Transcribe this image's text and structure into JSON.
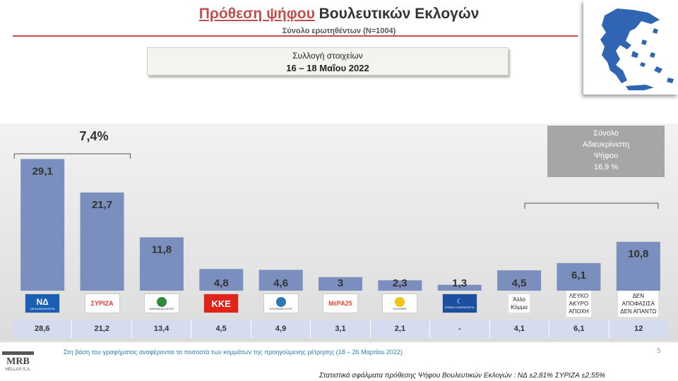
{
  "header": {
    "title_part1": "Πρόθεση ψήφου",
    "title_part2": "Βουλευτικών Εκλογών",
    "subtitle": "Σύνολο ερωτηθέντων (Ν=1004)",
    "period_label": "Συλλογή στοιχείων",
    "period_dates": "16 – 18 Μαΐου 2022"
  },
  "annotations": {
    "difference": "7,4%",
    "undecided_box": [
      "Σύνολο",
      "Αδιευκρίνιστη",
      "Ψήφου",
      "16,9 %"
    ]
  },
  "chart_data": {
    "type": "bar",
    "categories": [
      "ΝΔ",
      "ΣΥΡΙΖΑ",
      "ΚΙΝΑΛ",
      "ΚΚΕ",
      "ΕΛΛΗΝΙΚΗ ΛΥΣΗ",
      "ΜέΡΑ25",
      "ΕΛΛΗΝΕΣ",
      "ΕΘΝΙΚΗ ΔΗΜΟΚΡΑΤΙΑ",
      "Άλλο Κόμμα",
      "ΛΕΥΚΟ ΑΚΥΡΟ ΑΠΟΧΗ",
      "ΔΕΝ ΑΠΟΦΑΣΙΣΑ ΔΕΝ ΑΠΑΝΤΩ"
    ],
    "values": [
      29.1,
      21.7,
      11.8,
      4.8,
      4.6,
      3,
      2.3,
      1.3,
      4.5,
      6.1,
      10.8
    ],
    "value_labels": [
      "29,1",
      "21,7",
      "11,8",
      "4,8",
      "4,6",
      "3",
      "2,3",
      "1,3",
      "4,5",
      "6,1",
      "10,8"
    ],
    "previous_values": [
      "28,6",
      "21,2",
      "13,4",
      "4,5",
      "4,9",
      "3,1",
      "2,1",
      "-",
      "4,1",
      "6,1",
      "12"
    ],
    "bar_color": "#7b8fbe",
    "ylim": [
      0,
      32
    ]
  },
  "logos": [
    {
      "type": "nd",
      "text": "ΝΔ",
      "small": "ΝΕΑ ΔΗΜΟΚΡΑΤΙΑ",
      "color": "#1a5fb4"
    },
    {
      "type": "syriza",
      "text": "ΣΥΡΙΖΑ",
      "color": "#e3352e"
    },
    {
      "type": "kinal",
      "text": "",
      "small": "ΚΙΝΗΜΑ ΑΛΛΑΓΗΣ",
      "color": "#2e8b3a"
    },
    {
      "type": "kke",
      "text": "ΚΚΕ",
      "color": "#e2231a"
    },
    {
      "type": "elliniki",
      "text": "",
      "small": "ΕΛΛΗΝΙΚΗ ΛΥΣΗ",
      "color": "#2a78b8"
    },
    {
      "type": "mera",
      "text": "ΜέΡΑ25",
      "color": "#e4472d"
    },
    {
      "type": "ellines",
      "text": "",
      "small": "ΕΛΛΗΝΕΣ",
      "color": "#f0c419"
    },
    {
      "type": "ethniki",
      "text": "",
      "small": "ΕΘΝΙΚΗ ΔΗΜΟΚΡΑΤΙΑ",
      "color": "#1d4fa0"
    },
    {
      "type": "text",
      "lines": [
        "Άλλο",
        "Κόμμα"
      ]
    },
    {
      "type": "text",
      "lines": [
        "ΛΕΥΚΟ",
        "ΑΚΥΡΟ",
        "ΑΠΟΧΗ"
      ]
    },
    {
      "type": "text",
      "lines": [
        "ΔΕΝ",
        "ΑΠΟΦΑΣΙΣΑ",
        "ΔΕΝ ΑΠΑΝΤΩ"
      ]
    }
  ],
  "footer": {
    "footnote": "Στη βάση του γραφήματος αναφέρονται τα ποσοστά των κομμάτων της προηγούμενης μέτρησης (18 – 26 Μαρτίου 2022)",
    "page_number": "5",
    "margin_note": "Στατιστικά σφάλματα πρόθεσης Ψήφου Βουλευτικών Εκλογών : ΝΔ ±2,81% ΣΥΡΙΖΑ ±2,55%",
    "brand": "MRB",
    "brand_sub": "HELLAS S.A."
  }
}
